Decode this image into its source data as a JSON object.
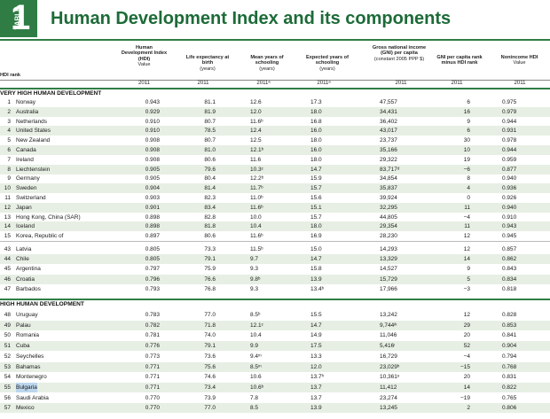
{
  "header": {
    "tab_word": "TABLE",
    "tab_number": "1",
    "title": "Human Development Index and its components"
  },
  "columns": {
    "rank": "HDI rank",
    "hdi": "Human Development Index (HDI)",
    "hdi_sub": "Value",
    "le": "Life expectancy at birth",
    "le_sub": "(years)",
    "mys": "Mean years of schooling",
    "mys_sub": "(years)",
    "eys": "Expected years of schooling",
    "eys_sub": "(years)",
    "gni": "Gross national income (GNI) per capita",
    "gni_sub": "(constant 2005 PPP $)",
    "diff": "GNI per capita rank minus HDI rank",
    "nh": "Nonincome HDI",
    "nh_sub": "Value"
  },
  "years": {
    "hdi": "2011",
    "le": "2011",
    "mys": "2011ᵃ",
    "eys": "2011ᵃ",
    "gni": "2011",
    "diff": "2011",
    "nh": "2011"
  },
  "sections": {
    "very_high": "VERY HIGH HUMAN DEVELOPMENT",
    "high": "HIGH HUMAN DEVELOPMENT"
  },
  "rows_a": [
    {
      "rank": "1",
      "country": "Norway",
      "hdi": "0.943",
      "le": "81.1",
      "mys": "12.6",
      "eys": "17.3",
      "gni": "47,557",
      "diff": "6",
      "nh": "0.975"
    },
    {
      "rank": "2",
      "country": "Australia",
      "hdi": "0.929",
      "le": "81.9",
      "mys": "12.0",
      "eys": "18.0",
      "gni": "34,431",
      "diff": "16",
      "nh": "0.979"
    },
    {
      "rank": "3",
      "country": "Netherlands",
      "hdi": "0.910",
      "le": "80.7",
      "mys": "11.6ᵇ",
      "eys": "16.8",
      "gni": "36,402",
      "diff": "9",
      "nh": "0.944"
    },
    {
      "rank": "4",
      "country": "United States",
      "hdi": "0.910",
      "le": "78.5",
      "mys": "12.4",
      "eys": "16.0",
      "gni": "43,017",
      "diff": "6",
      "nh": "0.931"
    },
    {
      "rank": "5",
      "country": "New Zealand",
      "hdi": "0.908",
      "le": "80.7",
      "mys": "12.5",
      "eys": "18.0",
      "gni": "23,737",
      "diff": "30",
      "nh": "0.978"
    },
    {
      "rank": "6",
      "country": "Canada",
      "hdi": "0.908",
      "le": "81.0",
      "mys": "12.1ᵇ",
      "eys": "16.0",
      "gni": "35,166",
      "diff": "10",
      "nh": "0.944"
    },
    {
      "rank": "7",
      "country": "Ireland",
      "hdi": "0.908",
      "le": "80.6",
      "mys": "11.6",
      "eys": "18.0",
      "gni": "29,322",
      "diff": "19",
      "nh": "0.959"
    },
    {
      "rank": "8",
      "country": "Liechtenstein",
      "hdi": "0.905",
      "le": "79.6",
      "mys": "10.3ᶜ",
      "eys": "14.7",
      "gni": "83,717ᵈ",
      "diff": "−6",
      "nh": "0.877"
    },
    {
      "rank": "9",
      "country": "Germany",
      "hdi": "0.905",
      "le": "80.4",
      "mys": "12.2ᵇ",
      "eys": "15.9",
      "gni": "34,854",
      "diff": "8",
      "nh": "0.940"
    },
    {
      "rank": "10",
      "country": "Sweden",
      "hdi": "0.904",
      "le": "81.4",
      "mys": "11.7ᵇ",
      "eys": "15.7",
      "gni": "35,837",
      "diff": "4",
      "nh": "0.936"
    },
    {
      "rank": "11",
      "country": "Switzerland",
      "hdi": "0.903",
      "le": "82.3",
      "mys": "11.0ᵇ",
      "eys": "15.6",
      "gni": "39,924",
      "diff": "0",
      "nh": "0.926"
    },
    {
      "rank": "12",
      "country": "Japan",
      "hdi": "0.901",
      "le": "83.4",
      "mys": "11.6ᵇ",
      "eys": "15.1",
      "gni": "32,295",
      "diff": "11",
      "nh": "0.940"
    },
    {
      "rank": "13",
      "country": "Hong Kong, China (SAR)",
      "hdi": "0.898",
      "le": "82.8",
      "mys": "10.0",
      "eys": "15.7",
      "gni": "44,805",
      "diff": "−4",
      "nh": "0.910"
    },
    {
      "rank": "14",
      "country": "Iceland",
      "hdi": "0.898",
      "le": "81.8",
      "mys": "10.4",
      "eys": "18.0",
      "gni": "29,354",
      "diff": "11",
      "nh": "0.943"
    },
    {
      "rank": "15",
      "country": "Korea, Republic of",
      "hdi": "0.897",
      "le": "80.6",
      "mys": "11.6ᵇ",
      "eys": "16.9",
      "gni": "28,230",
      "diff": "12",
      "nh": "0.945"
    }
  ],
  "rows_b": [
    {
      "rank": "43",
      "country": "Latvia",
      "hdi": "0.805",
      "le": "73.3",
      "mys": "11.5ᵇ",
      "eys": "15.0",
      "gni": "14,293",
      "diff": "12",
      "nh": "0.857"
    },
    {
      "rank": "44",
      "country": "Chile",
      "hdi": "0.805",
      "le": "79.1",
      "mys": "9.7",
      "eys": "14.7",
      "gni": "13,329",
      "diff": "14",
      "nh": "0.862"
    },
    {
      "rank": "45",
      "country": "Argentina",
      "hdi": "0.797",
      "le": "75.9",
      "mys": "9.3",
      "eys": "15.8",
      "gni": "14,527",
      "diff": "9",
      "nh": "0.843"
    },
    {
      "rank": "46",
      "country": "Croatia",
      "hdi": "0.796",
      "le": "76.6",
      "mys": "9.8ᵇ",
      "eys": "13.9",
      "gni": "15,729",
      "diff": "5",
      "nh": "0.834"
    },
    {
      "rank": "47",
      "country": "Barbados",
      "hdi": "0.793",
      "le": "76.8",
      "mys": "9.3",
      "eys": "13.4ᵇ",
      "gni": "17,966",
      "diff": "−3",
      "nh": "0.818"
    }
  ],
  "rows_c": [
    {
      "rank": "48",
      "country": "Uruguay",
      "hdi": "0.783",
      "le": "77.0",
      "mys": "8.5ᵇ",
      "eys": "15.5",
      "gni": "13,242",
      "diff": "12",
      "nh": "0.828"
    },
    {
      "rank": "49",
      "country": "Palau",
      "hdi": "0.782",
      "le": "71.8",
      "mys": "12.1ᶜ",
      "eys": "14.7",
      "gni": "9,744ᶦᵏ",
      "diff": "29",
      "nh": "0.853"
    },
    {
      "rank": "50",
      "country": "Romania",
      "hdi": "0.781",
      "le": "74.0",
      "mys": "10.4",
      "eys": "14.9",
      "gni": "11,046",
      "diff": "20",
      "nh": "0.841"
    },
    {
      "rank": "51",
      "country": "Cuba",
      "hdi": "0.776",
      "le": "79.1",
      "mys": "9.9",
      "eys": "17.5",
      "gni": "5,416ᶦ",
      "diff": "52",
      "nh": "0.904"
    },
    {
      "rank": "52",
      "country": "Seychelles",
      "hdi": "0.773",
      "le": "73.6",
      "mys": "9.4ᵐ",
      "eys": "13.3",
      "gni": "16,729",
      "diff": "−4",
      "nh": "0.794"
    },
    {
      "rank": "53",
      "country": "Bahamas",
      "hdi": "0.771",
      "le": "75.6",
      "mys": "8.5ᵐ",
      "eys": "12.0",
      "gni": "23,029ʰ",
      "diff": "−15",
      "nh": "0.768"
    },
    {
      "rank": "54",
      "country": "Montenegro",
      "hdi": "0.771",
      "le": "74.6",
      "mys": "10.6",
      "eys": "13.7ʰ",
      "gni": "10,361ᵉ",
      "diff": "20",
      "nh": "0.831"
    },
    {
      "rank": "55",
      "country": "Bulgaria",
      "hdi": "0.771",
      "le": "73.4",
      "mys": "10.6ᵇ",
      "eys": "13.7",
      "gni": "11,412",
      "diff": "14",
      "nh": "0.822"
    },
    {
      "rank": "56",
      "country": "Saudi Arabia",
      "hdi": "0.770",
      "le": "73.9",
      "mys": "7.8",
      "eys": "13.7",
      "gni": "23,274",
      "diff": "−19",
      "nh": "0.765"
    },
    {
      "rank": "57",
      "country": "Mexico",
      "hdi": "0.770",
      "le": "77.0",
      "mys": "8.5",
      "eys": "13.9",
      "gni": "13,245",
      "diff": "2",
      "nh": "0.806"
    }
  ]
}
